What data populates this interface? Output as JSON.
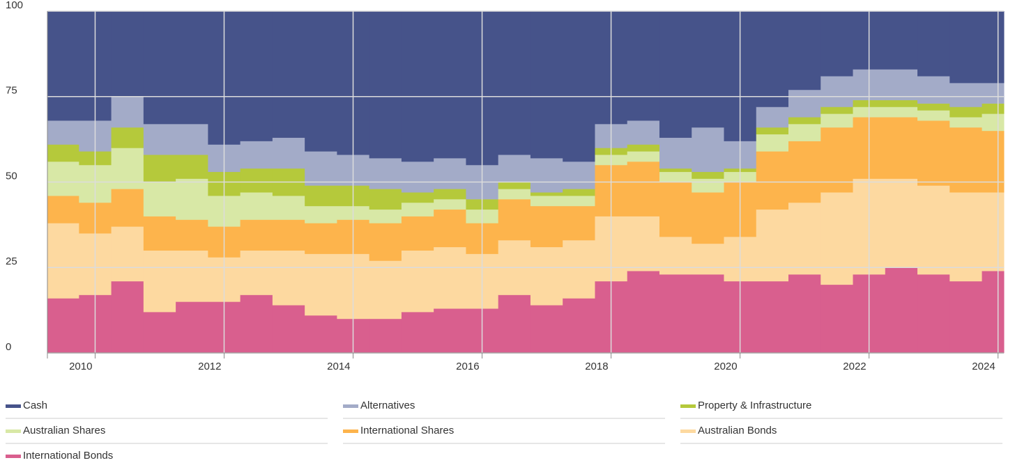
{
  "chart_data": {
    "type": "stacked-step-area",
    "x": [
      2009.5,
      2010,
      2010.5,
      2011,
      2011.5,
      2012,
      2012.5,
      2013,
      2013.5,
      2014,
      2014.5,
      2015,
      2015.5,
      2016,
      2016.5,
      2017,
      2017.5,
      2018,
      2018.5,
      2019,
      2019.5,
      2020,
      2020.5,
      2021,
      2021.5,
      2022,
      2022.5,
      2023,
      2023.5,
      2024
    ],
    "xlim": [
      2009.26,
      2024.09
    ],
    "xticks": [
      2010,
      2012,
      2014,
      2016,
      2018,
      2020,
      2022,
      2024
    ],
    "ylim": [
      0,
      100
    ],
    "yticks": [
      0,
      25,
      50,
      75,
      100
    ],
    "grid": true,
    "series": [
      {
        "name": "Cash",
        "color": "#46538a",
        "values": [
          32,
          32,
          25,
          33,
          33,
          39,
          38,
          37,
          41,
          42,
          43,
          44,
          43,
          45,
          42,
          43,
          44,
          33,
          32,
          37,
          34,
          38,
          28,
          23,
          19,
          17,
          17,
          19,
          21,
          21
        ]
      },
      {
        "name": "Alternatives",
        "color": "#a3abc8",
        "values": [
          7,
          9,
          9,
          9,
          9,
          8,
          8,
          9,
          10,
          9,
          9,
          9,
          9,
          10,
          8,
          10,
          8,
          7,
          7,
          9,
          13,
          8,
          6,
          8,
          9,
          9,
          9,
          8,
          7,
          6
        ]
      },
      {
        "name": "Property & Infrastructure",
        "color": "#b5c93b",
        "values": [
          5,
          4,
          6,
          8,
          7,
          7,
          7,
          8,
          6,
          6,
          6,
          3,
          3,
          3,
          2,
          1,
          2,
          2,
          2,
          1,
          2,
          1,
          2,
          2,
          2,
          2,
          2,
          2,
          3,
          3
        ]
      },
      {
        "name": "Australian Shares",
        "color": "#d8e8a6",
        "values": [
          10,
          11,
          12,
          10,
          12,
          9,
          8,
          7,
          5,
          4,
          4,
          4,
          3,
          4,
          3,
          3,
          3,
          3,
          3,
          3,
          4,
          3,
          5,
          5,
          4,
          3,
          3,
          3,
          3,
          5
        ]
      },
      {
        "name": "International Shares",
        "color": "#fdb44c",
        "values": [
          8,
          9,
          11,
          10,
          9,
          9,
          9,
          9,
          9,
          10,
          11,
          10,
          11,
          9,
          12,
          12,
          10,
          15,
          16,
          16,
          15,
          16,
          17,
          18,
          19,
          18,
          18,
          19,
          19,
          18
        ]
      },
      {
        "name": "Australian Bonds",
        "color": "#fdd9a0",
        "values": [
          22,
          18,
          16,
          18,
          15,
          13,
          13,
          16,
          18,
          19,
          17,
          18,
          18,
          16,
          16,
          17,
          17,
          19,
          16,
          11,
          9,
          13,
          21,
          21,
          27,
          28,
          26,
          26,
          26,
          23
        ]
      },
      {
        "name": "International Bonds",
        "color": "#d95f8e",
        "values": [
          16,
          17,
          21,
          12,
          15,
          15,
          17,
          14,
          11,
          10,
          10,
          12,
          13,
          13,
          17,
          14,
          16,
          21,
          24,
          23,
          23,
          21,
          21,
          23,
          20,
          23,
          25,
          23,
          21,
          24
        ]
      }
    ]
  }
}
